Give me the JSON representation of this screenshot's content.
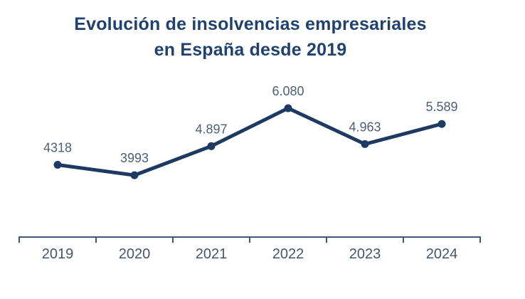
{
  "chart_data": {
    "type": "line",
    "title": "Evolución de insolvencias empresariales en España desde 2019",
    "title_lines": [
      "Evolución de insolvencias empresariales",
      "en España desde 2019"
    ],
    "categories": [
      "2019",
      "2020",
      "2021",
      "2022",
      "2023",
      "2024"
    ],
    "values": [
      4318,
      3993,
      4897,
      6080,
      4963,
      5589
    ],
    "value_labels": [
      "4318",
      "3993",
      "4.897",
      "6.080",
      "4.963",
      "5.589"
    ],
    "xlabel": "",
    "ylabel": "",
    "ylim": [
      2000,
      7000
    ],
    "grid": false,
    "legend": false,
    "data_labels": "above-points",
    "colors": {
      "line": "#1d3a62",
      "marker": "#1d3a62",
      "data_label": "#4b5f78",
      "axis": "#3e5878",
      "tick_label": "#44566e",
      "title": "#1f4170",
      "background": "#ffffff"
    }
  }
}
